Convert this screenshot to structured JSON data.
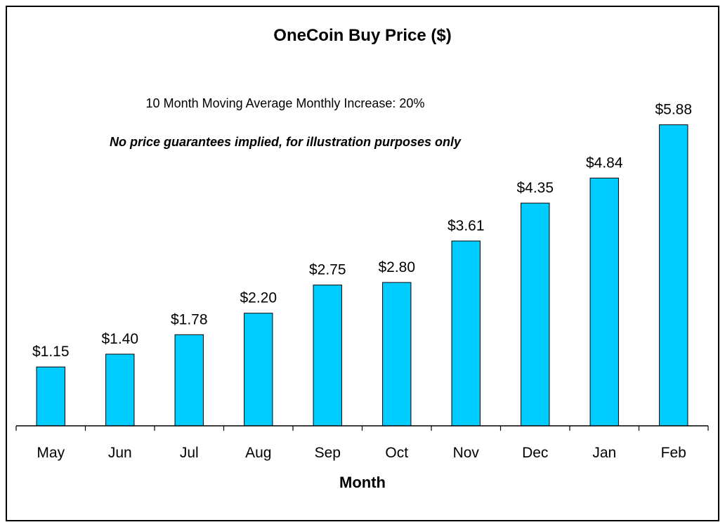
{
  "chart_data": {
    "type": "bar",
    "title": "OneCoin Buy Price ($)",
    "annotations": [
      "10 Month Moving Average Monthly Increase: 20%",
      "No price guarantees implied, for illustration purposes only"
    ],
    "xlabel": "Month",
    "ylabel": "",
    "categories": [
      "May",
      "Jun",
      "Jul",
      "Aug",
      "Sep",
      "Oct",
      "Nov",
      "Dec",
      "Jan",
      "Feb"
    ],
    "values": [
      1.15,
      1.4,
      1.78,
      2.2,
      2.75,
      2.8,
      3.61,
      4.35,
      4.84,
      5.88
    ],
    "data_labels": [
      "$1.15",
      "$1.40",
      "$1.78",
      "$2.20",
      "$2.75",
      "$2.80",
      "$3.61",
      "$4.35",
      "$4.84",
      "$5.88"
    ],
    "ylim": [
      0,
      7
    ],
    "grid": false,
    "legend": "none",
    "colors": {
      "bar_fill": "#00ccff",
      "bar_stroke": "#000000",
      "axis": "#000000"
    }
  }
}
